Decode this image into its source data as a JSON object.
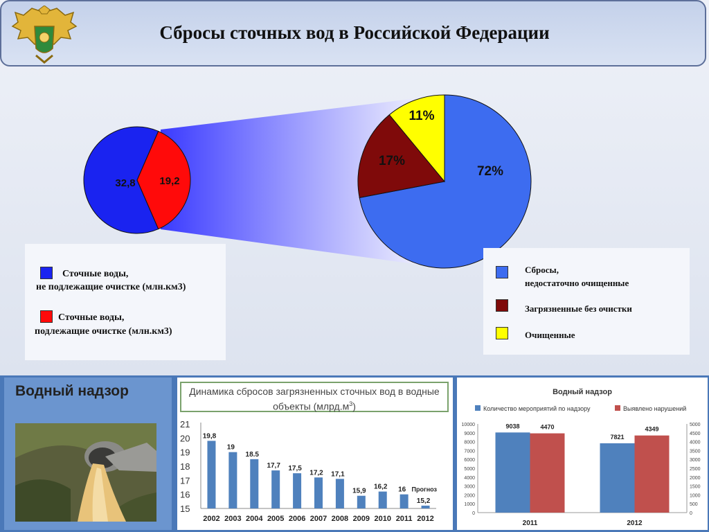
{
  "header": {
    "title": "Сбросы сточных вод в Российской Федерации"
  },
  "colors": {
    "blue_pie": "#1a23f0",
    "red_pie": "#ff0a0a",
    "blue_big": "#3d6cf0",
    "dark_red": "#7f0a0a",
    "yellow": "#ffff00",
    "bar_blue": "#4f81bd",
    "bar_red": "#c0504d",
    "panel_blue": "#4a78b8"
  },
  "legend_left": {
    "items": [
      {
        "label_line1": "Сточные воды,",
        "label_line2": "не подлежащие очистке (млн.км3)",
        "color": "#1a23f0"
      },
      {
        "label_line1": "Сточные воды,",
        "label_line2": "подлежащие очистке (млн.км3)",
        "color": "#ff0a0a"
      }
    ]
  },
  "legend_right": {
    "items": [
      {
        "label_line1": "Сбросы,",
        "label_line2": "недостаточно очищенные",
        "color": "#3d6cf0"
      },
      {
        "label_line1": "Загрязненные без очистки",
        "label_line2": "",
        "color": "#7f0a0a"
      },
      {
        "label_line1": "Очищенные",
        "label_line2": "",
        "color": "#ffff00"
      }
    ]
  },
  "panel_water": {
    "title": "Водный надзор"
  },
  "chart_data": [
    {
      "type": "pie",
      "labels": [
        "Сточные воды, не подлежащие очистке (млн.км3)",
        "Сточные воды, подлежащие очистке (млн.км3)"
      ],
      "values": [
        32.8,
        19.2
      ],
      "value_labels": [
        "32,8",
        "19,2"
      ],
      "colors": [
        "#1a23f0",
        "#ff0a0a"
      ]
    },
    {
      "type": "pie",
      "labels": [
        "Сбросы, недостаточно очищенные",
        "Загрязненные без очистки",
        "Очищенные"
      ],
      "values": [
        72,
        17,
        11
      ],
      "value_labels": [
        "72%",
        "17%",
        "11%"
      ],
      "colors": [
        "#3d6cf0",
        "#7f0a0a",
        "#ffff00"
      ]
    },
    {
      "type": "bar",
      "title_line1": "Динамика сбросов загрязненных сточных вод в водные",
      "title_line2": "объекты (млрд.м",
      "title_sup": "3",
      "title_end": ")",
      "categories": [
        "2002",
        "2003",
        "2004",
        "2005",
        "2006",
        "2007",
        "2008",
        "2009",
        "2010",
        "2011",
        "2012"
      ],
      "values": [
        19.8,
        19,
        18.5,
        17.7,
        17.5,
        17.2,
        17.1,
        15.9,
        16.2,
        16,
        15.2
      ],
      "value_labels": [
        "19,8",
        "19",
        "18.5",
        "17,7",
        "17,5",
        "17,2",
        "17,1",
        "15,9",
        "16,2",
        "16",
        "15,2"
      ],
      "annotation": "Прогноз",
      "yticks": [
        "21",
        "20",
        "19",
        "18",
        "17",
        "16",
        "15"
      ],
      "ylim": [
        15,
        21
      ],
      "color": "#4f81bd"
    },
    {
      "type": "bar",
      "title": "Водный надзор",
      "categories": [
        "2011",
        "2012"
      ],
      "series": [
        {
          "name": "Количество мероприятий по надзору",
          "values": [
            9038,
            7821
          ],
          "value_labels": [
            "9038",
            "7821"
          ],
          "color": "#4f81bd"
        },
        {
          "name": "Выявлено нарушений",
          "values": [
            4470,
            4349
          ],
          "value_labels": [
            "4470",
            "4349"
          ],
          "color": "#c0504d"
        }
      ],
      "yticks_left": [
        "10000",
        "9000",
        "8000",
        "7000",
        "6000",
        "5000",
        "4000",
        "3000",
        "2000",
        "1000",
        "0"
      ],
      "yticks_right": [
        "5000",
        "4500",
        "4000",
        "3500",
        "3000",
        "2500",
        "2000",
        "1500",
        "1000",
        "500",
        "0"
      ],
      "ylim_left": [
        0,
        10000
      ],
      "ylim_right": [
        0,
        5000
      ]
    }
  ]
}
